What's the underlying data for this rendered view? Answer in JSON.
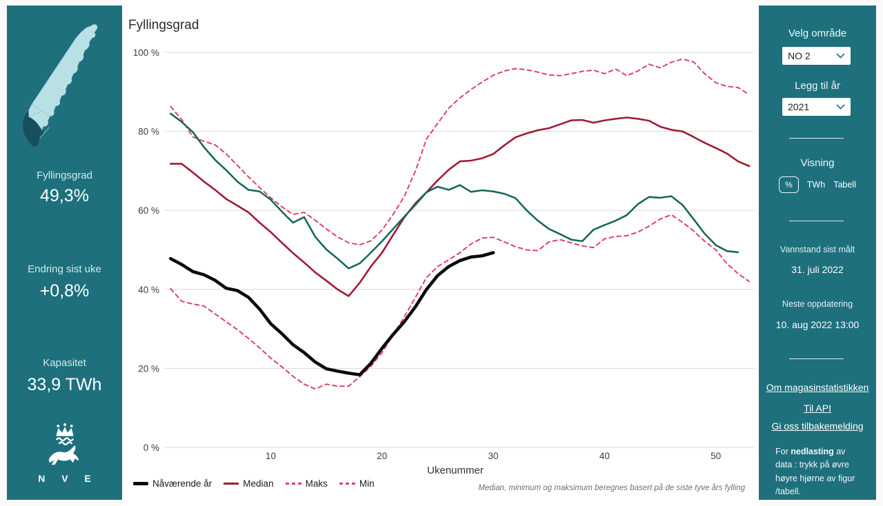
{
  "left_panel": {
    "filling_label": "Fyllingsgrad",
    "filling_value": "49,3%",
    "change_label": "Endring sist uke",
    "change_value": "+0,8%",
    "capacity_label": "Kapasitet",
    "capacity_value": "33,9 TWh",
    "logo_text": "N V E"
  },
  "right_panel": {
    "area_label": "Velg område",
    "area_value": "NO 2",
    "year_label": "Legg til år",
    "year_value": "2021",
    "view_label": "Visning",
    "view_options": [
      "%",
      "TWh",
      "Tabell"
    ],
    "measured_label": "Vannstand sist målt",
    "measured_value": "31. juli 2022",
    "next_update_label": "Neste oppdatering",
    "next_update_value": "10. aug 2022 13:00",
    "links": [
      "Om magasinstatistikken",
      "Til API",
      "Gi oss tilbakemelding"
    ],
    "note_prefix": "For ",
    "note_bold": "nedlasting",
    "note_suffix": " av data : trykk på øvre høyre hjørne av figur /tabell."
  },
  "chart": {
    "title": "Fyllingsgrad",
    "xlabel": "Ukenummer",
    "footnote": "Median, minimum og maksimum beregnes basert på de siste tyve års fylling"
  },
  "chart_data": {
    "type": "line",
    "title": "Fyllingsgrad",
    "xlabel": "Ukenummer",
    "ylabel": "%",
    "xlim": [
      1,
      53
    ],
    "ylim": [
      0,
      100
    ],
    "x_ticks": [
      10,
      20,
      30,
      40,
      50
    ],
    "y_ticks": [
      0,
      20,
      40,
      60,
      80,
      100
    ],
    "y_tick_suffix": " %",
    "grid": true,
    "legend_position": "bottom-left",
    "series": [
      {
        "name": "Min",
        "color": "#e04261",
        "width": 2,
        "dash": "6,5",
        "start_week": 1,
        "values": [
          40.2,
          37.0,
          36.3,
          35.8,
          33.8,
          31.8,
          29.8,
          27.6,
          25.2,
          22.6,
          20.4,
          18.0,
          16.0,
          14.8,
          16.0,
          15.5,
          15.5,
          17.9,
          20.5,
          24.0,
          28.5,
          33.0,
          38.0,
          43.0,
          45.8,
          47.5,
          49.3,
          51.5,
          53.0,
          53.2,
          52.0,
          50.8,
          50.0,
          49.8,
          52.0,
          52.6,
          51.8,
          51.0,
          50.6,
          52.8,
          53.4,
          53.6,
          54.5,
          56.0,
          57.8,
          58.9,
          57.0,
          54.8,
          52.2,
          50.0,
          46.5,
          44.0,
          42.0
        ]
      },
      {
        "name": "Maks",
        "color": "#e04261",
        "width": 2,
        "dash": "6,5",
        "start_week": 1,
        "values": [
          86.3,
          83.0,
          78.6,
          77.5,
          76.6,
          74.3,
          71.4,
          68.5,
          65.8,
          63.2,
          60.9,
          59.0,
          59.5,
          57.5,
          55.3,
          53.3,
          51.8,
          51.3,
          52.3,
          55.0,
          59.0,
          63.5,
          70.0,
          78.1,
          82.0,
          85.9,
          88.5,
          90.6,
          92.5,
          94.2,
          95.3,
          95.9,
          95.6,
          95.0,
          94.3,
          94.1,
          94.6,
          95.2,
          95.5,
          94.6,
          95.8,
          94.1,
          95.3,
          97.0,
          96.1,
          97.5,
          98.3,
          97.6,
          94.6,
          92.3,
          91.4,
          91.1,
          89.3
        ]
      },
      {
        "name": "Median",
        "color": "#9f1b33",
        "width": 2.6,
        "dash": null,
        "start_week": 1,
        "values": [
          71.8,
          71.8,
          69.6,
          67.3,
          65.2,
          62.9,
          61.2,
          59.5,
          56.9,
          54.5,
          51.8,
          49.2,
          46.8,
          44.3,
          42.2,
          40.0,
          38.3,
          41.7,
          45.8,
          49.3,
          53.8,
          58.2,
          61.8,
          64.6,
          67.6,
          70.3,
          72.4,
          72.6,
          73.2,
          74.3,
          76.5,
          78.5,
          79.5,
          80.3,
          80.8,
          81.8,
          82.8,
          82.9,
          82.2,
          82.8,
          83.2,
          83.5,
          83.2,
          82.7,
          81.2,
          80.4,
          80.0,
          78.6,
          77.1,
          75.8,
          74.4,
          72.4,
          71.2
        ]
      },
      {
        "name": "Nåværende år",
        "color": "#0b0b0b",
        "width": 4.6,
        "dash": null,
        "start_week": 1,
        "values": [
          47.8,
          46.3,
          44.5,
          43.7,
          42.3,
          40.3,
          39.7,
          38.0,
          35.0,
          31.3,
          28.8,
          26.0,
          24.0,
          21.6,
          19.9,
          19.3,
          18.8,
          18.4,
          21.3,
          25.1,
          28.6,
          31.8,
          35.6,
          40.0,
          43.5,
          45.8,
          47.3,
          48.2,
          48.5,
          49.3
        ]
      },
      {
        "name": "2021",
        "color": "#15695c",
        "width": 2.6,
        "dash": null,
        "start_week": 1,
        "values": [
          84.5,
          82.4,
          79.8,
          76.0,
          72.8,
          70.2,
          67.3,
          65.2,
          64.8,
          62.7,
          59.7,
          56.9,
          58.3,
          53.3,
          50.1,
          47.8,
          45.3,
          46.6,
          49.3,
          52.2,
          55.3,
          58.4,
          61.4,
          64.6,
          66.0,
          65.2,
          66.4,
          64.7,
          65.1,
          64.8,
          64.2,
          63.1,
          60.0,
          57.4,
          55.3,
          54.0,
          52.6,
          52.2,
          55.1,
          56.3,
          57.4,
          58.8,
          61.6,
          63.4,
          63.2,
          63.6,
          61.4,
          57.8,
          54.1,
          51.2,
          49.7,
          49.4
        ]
      }
    ]
  },
  "colors": {
    "panel_teal": "#1e707d",
    "map_light": "#b9e0e5",
    "map_dark": "#184f5f",
    "gridline": "#d8d8d8",
    "axis_text": "#3c3c3c",
    "current_year": "#0b0b0b",
    "median": "#9f1b33",
    "maks_min": "#e04261",
    "year_2021": "#15695c"
  }
}
